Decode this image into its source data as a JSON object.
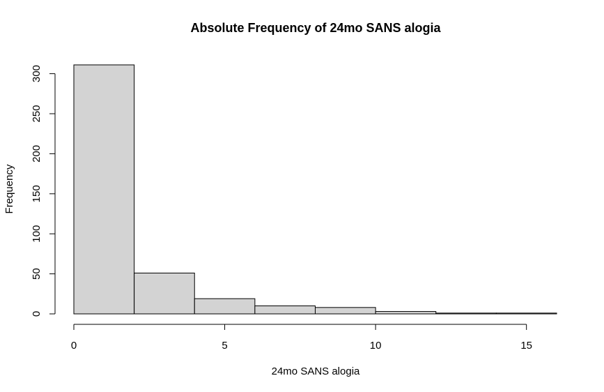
{
  "chart_data": {
    "type": "bar",
    "subtype": "histogram",
    "title": "Absolute Frequency of 24mo SANS alogia",
    "xlabel": "24mo SANS alogia",
    "ylabel": "Frequency",
    "bins": [
      {
        "start": 0,
        "end": 2,
        "value": 311
      },
      {
        "start": 2,
        "end": 4,
        "value": 51
      },
      {
        "start": 4,
        "end": 6,
        "value": 19
      },
      {
        "start": 6,
        "end": 8,
        "value": 10
      },
      {
        "start": 8,
        "end": 10,
        "value": 8
      },
      {
        "start": 10,
        "end": 12,
        "value": 3
      },
      {
        "start": 12,
        "end": 14,
        "value": 1
      },
      {
        "start": 14,
        "end": 16,
        "value": 1
      }
    ],
    "xlim": [
      0,
      16
    ],
    "ylim": [
      0,
      311
    ],
    "x_ticks": [
      0,
      5,
      10,
      15
    ],
    "y_ticks": [
      0,
      50,
      100,
      150,
      200,
      250,
      300
    ],
    "bar_color": "#d3d3d3",
    "grid": false,
    "legend": "none"
  }
}
